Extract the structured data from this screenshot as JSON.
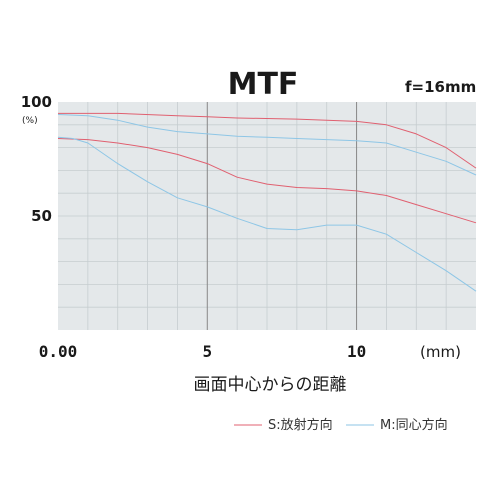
{
  "chart_data": {
    "type": "line",
    "title": "MTF",
    "subtitle": "f=16mm",
    "xlabel": "画面中心からの距離",
    "x_unit_label": "(mm)",
    "ylabel_unit": "(%)",
    "xlim": [
      0,
      14
    ],
    "ylim": [
      0,
      100
    ],
    "x_ticks": [
      {
        "value": 0,
        "label": "0.00"
      },
      {
        "value": 5,
        "label": "5"
      },
      {
        "value": 10,
        "label": "10"
      }
    ],
    "y_ticks": [
      {
        "value": 100,
        "label": "100"
      },
      {
        "value": 50,
        "label": "50"
      }
    ],
    "grid": true,
    "legend_position": "bottom-right",
    "series": [
      {
        "name": "S:放射方向",
        "group": "S",
        "color": "#e06070",
        "x": [
          0,
          2,
          4,
          5,
          6,
          8,
          10,
          11,
          12,
          13,
          14
        ],
        "y": [
          95,
          95,
          94,
          93.5,
          93,
          92.5,
          91.5,
          90,
          86,
          80,
          71
        ]
      },
      {
        "name": "S:放射方向",
        "group": "S",
        "color": "#e06070",
        "x": [
          0,
          1,
          2,
          3,
          4,
          5,
          6,
          7,
          8,
          9,
          10,
          11,
          12,
          13,
          14
        ],
        "y": [
          84,
          83.5,
          82,
          80,
          77,
          73,
          67,
          64,
          62.5,
          62,
          61,
          59,
          55,
          51,
          47
        ]
      },
      {
        "name": "M:同心方向",
        "group": "M",
        "color": "#8ec6e6",
        "x": [
          0,
          1,
          2,
          3,
          4,
          5,
          6,
          7,
          8,
          9,
          10,
          11,
          12,
          13,
          14
        ],
        "y": [
          94.5,
          94,
          92,
          89,
          87,
          86,
          85,
          84.5,
          84,
          83.5,
          83,
          82,
          78,
          74,
          68
        ]
      },
      {
        "name": "M:同心方向",
        "group": "M",
        "color": "#8ec6e6",
        "x": [
          0,
          0.5,
          1,
          2,
          3,
          4,
          5,
          6,
          7,
          8,
          9,
          10,
          11,
          12,
          13,
          14
        ],
        "y": [
          84.5,
          84,
          82,
          73,
          65,
          58,
          54,
          49,
          44.5,
          44,
          46,
          46,
          42,
          34,
          26,
          17
        ]
      }
    ]
  },
  "legend": [
    {
      "label": "S:放射方向",
      "color": "#e06070"
    },
    {
      "label": "M:同心方向",
      "color": "#8ec6e6"
    }
  ],
  "colors": {
    "plot_background": "#e4e8ea",
    "grid_major": "#888888",
    "grid_minor": "#c6cdd0"
  }
}
